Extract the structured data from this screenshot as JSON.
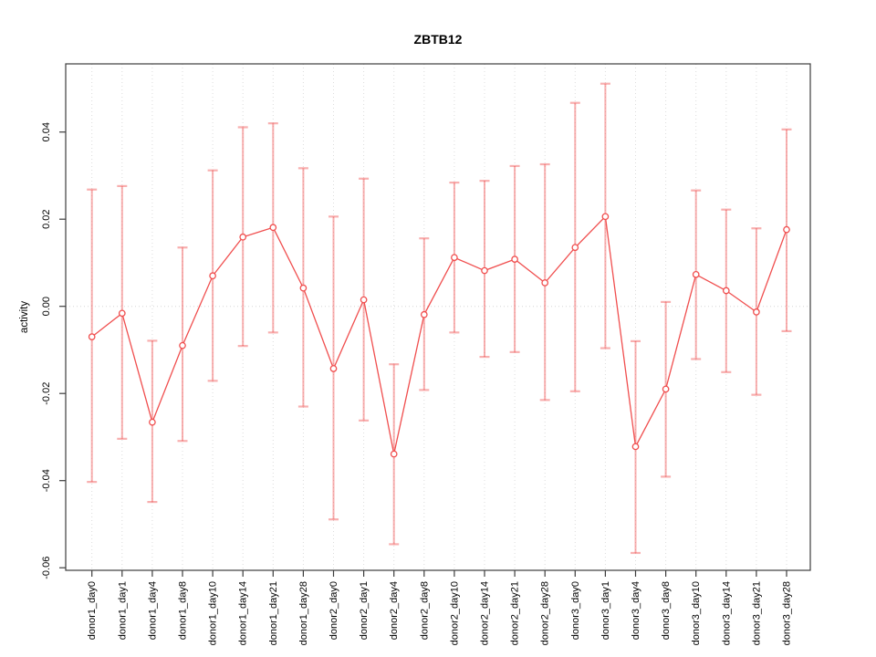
{
  "window": {
    "background": "#ffffff"
  },
  "chart_data": {
    "type": "line",
    "title": "ZBTB12",
    "xlabel": "",
    "ylabel": "activity",
    "legend": "none",
    "grid": "vertical dotted gridline at every category; dotted horizontal line at y=0; full plot box frame",
    "ylim": [
      -0.0605,
      0.0555
    ],
    "yticks": [
      -0.06,
      -0.04,
      -0.02,
      0.0,
      0.02,
      0.04
    ],
    "ytick_labels": [
      "-0.06",
      "-0.04",
      "-0.02",
      "0.00",
      "0.02",
      "0.04"
    ],
    "categories": [
      "donor1_day0",
      "donor1_day1",
      "donor1_day4",
      "donor1_day8",
      "donor1_day10",
      "donor1_day14",
      "donor1_day21",
      "donor1_day28",
      "donor2_day0",
      "donor2_day1",
      "donor2_day4",
      "donor2_day8",
      "donor2_day10",
      "donor2_day14",
      "donor2_day21",
      "donor2_day28",
      "donor3_day0",
      "donor3_day1",
      "donor3_day4",
      "donor3_day8",
      "donor3_day10",
      "donor3_day14",
      "donor3_day21",
      "donor3_day28"
    ],
    "series": [
      {
        "name": "activity",
        "marker": "open-circle",
        "values": [
          -0.007,
          -0.0016,
          -0.0266,
          -0.009,
          0.007,
          0.0159,
          0.0181,
          0.0042,
          -0.0143,
          0.0015,
          -0.0339,
          -0.0019,
          0.0112,
          0.0082,
          0.0108,
          0.0054,
          0.0135,
          0.0206,
          -0.0322,
          -0.019,
          0.0073,
          0.0036,
          -0.0013,
          0.0176
        ],
        "error_upper": [
          0.0268,
          0.0276,
          -0.0079,
          0.0135,
          0.0312,
          0.0411,
          0.042,
          0.0317,
          0.0206,
          0.0293,
          -0.0133,
          0.0156,
          0.0284,
          0.0288,
          0.0322,
          0.0326,
          0.0467,
          0.0511,
          -0.008,
          0.001,
          0.0266,
          0.0222,
          0.0179,
          0.0406
        ],
        "error_lower": [
          -0.0403,
          -0.0304,
          -0.0449,
          -0.0309,
          -0.0171,
          -0.0091,
          -0.006,
          -0.023,
          -0.0489,
          -0.0262,
          -0.0546,
          -0.0192,
          -0.006,
          -0.0116,
          -0.0105,
          -0.0215,
          -0.0195,
          -0.0096,
          -0.0566,
          -0.0391,
          -0.0121,
          -0.0151,
          -0.0203,
          -0.0057
        ]
      }
    ],
    "colors": {
      "series": "#f04e4e",
      "error_bar": "rgba(240,78,78,0.45)",
      "gridline": "#dcdcdc",
      "zero_line": "#d6d6d6",
      "axis": "#3c3c3c",
      "text": "#000000",
      "marker_fill": "#ffffff"
    }
  }
}
